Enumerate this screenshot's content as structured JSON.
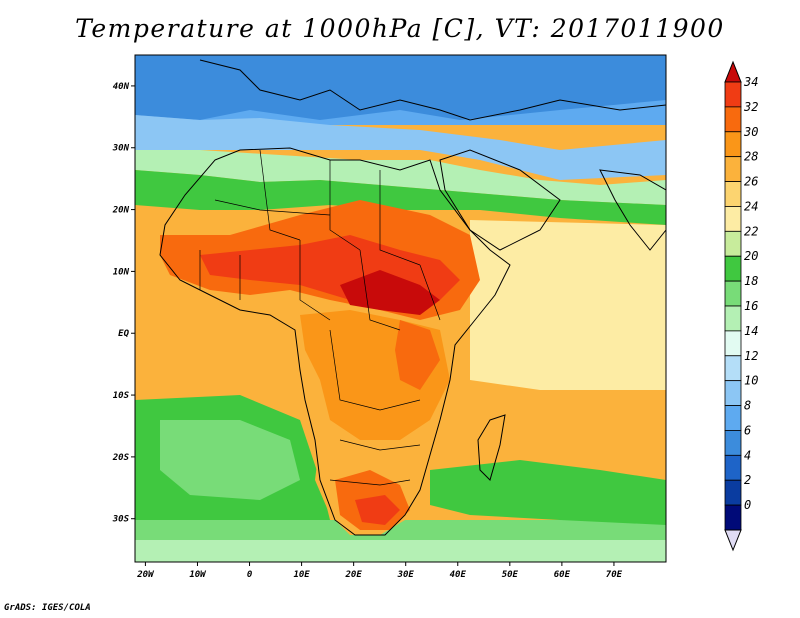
{
  "title": "Temperature at 1000hPa [C], VT: 2017011900",
  "credit": "GrADS: IGES/COLA",
  "map": {
    "region": "Africa",
    "lon_range": [
      -22,
      80
    ],
    "lat_range": [
      -37,
      45
    ],
    "lat_ticks": [
      {
        "value": 40,
        "label": "40N"
      },
      {
        "value": 30,
        "label": "30N"
      },
      {
        "value": 20,
        "label": "20N"
      },
      {
        "value": 10,
        "label": "10N"
      },
      {
        "value": 0,
        "label": "EQ"
      },
      {
        "value": -10,
        "label": "10S"
      },
      {
        "value": -20,
        "label": "20S"
      },
      {
        "value": -30,
        "label": "30S"
      }
    ],
    "lon_ticks": [
      {
        "value": -20,
        "label": "20W"
      },
      {
        "value": -10,
        "label": "10W"
      },
      {
        "value": 0,
        "label": "0"
      },
      {
        "value": 10,
        "label": "10E"
      },
      {
        "value": 20,
        "label": "20E"
      },
      {
        "value": 30,
        "label": "30E"
      },
      {
        "value": 40,
        "label": "40E"
      },
      {
        "value": 50,
        "label": "50E"
      },
      {
        "value": 60,
        "label": "60E"
      },
      {
        "value": 70,
        "label": "70E"
      }
    ]
  },
  "colorbar": {
    "labels": [
      "34",
      "32",
      "30",
      "28",
      "26",
      "24",
      "22",
      "20",
      "18",
      "16",
      "14",
      "12",
      "10",
      "8",
      "6",
      "4",
      "2",
      "0"
    ],
    "colors": [
      "#f03c14",
      "#f86a0e",
      "#fa9618",
      "#fbb23c",
      "#fcd470",
      "#fdeca4",
      "#c8ec9c",
      "#40c840",
      "#78dc78",
      "#b4f0b4",
      "#e2fbf2",
      "#b4def8",
      "#8cc6f4",
      "#5eaaf0",
      "#3c8cdc",
      "#1e64c8",
      "#0a3ca0",
      "#000a78"
    ],
    "over_color": "#c80a0a",
    "under_color": "#e0dcf4"
  }
}
